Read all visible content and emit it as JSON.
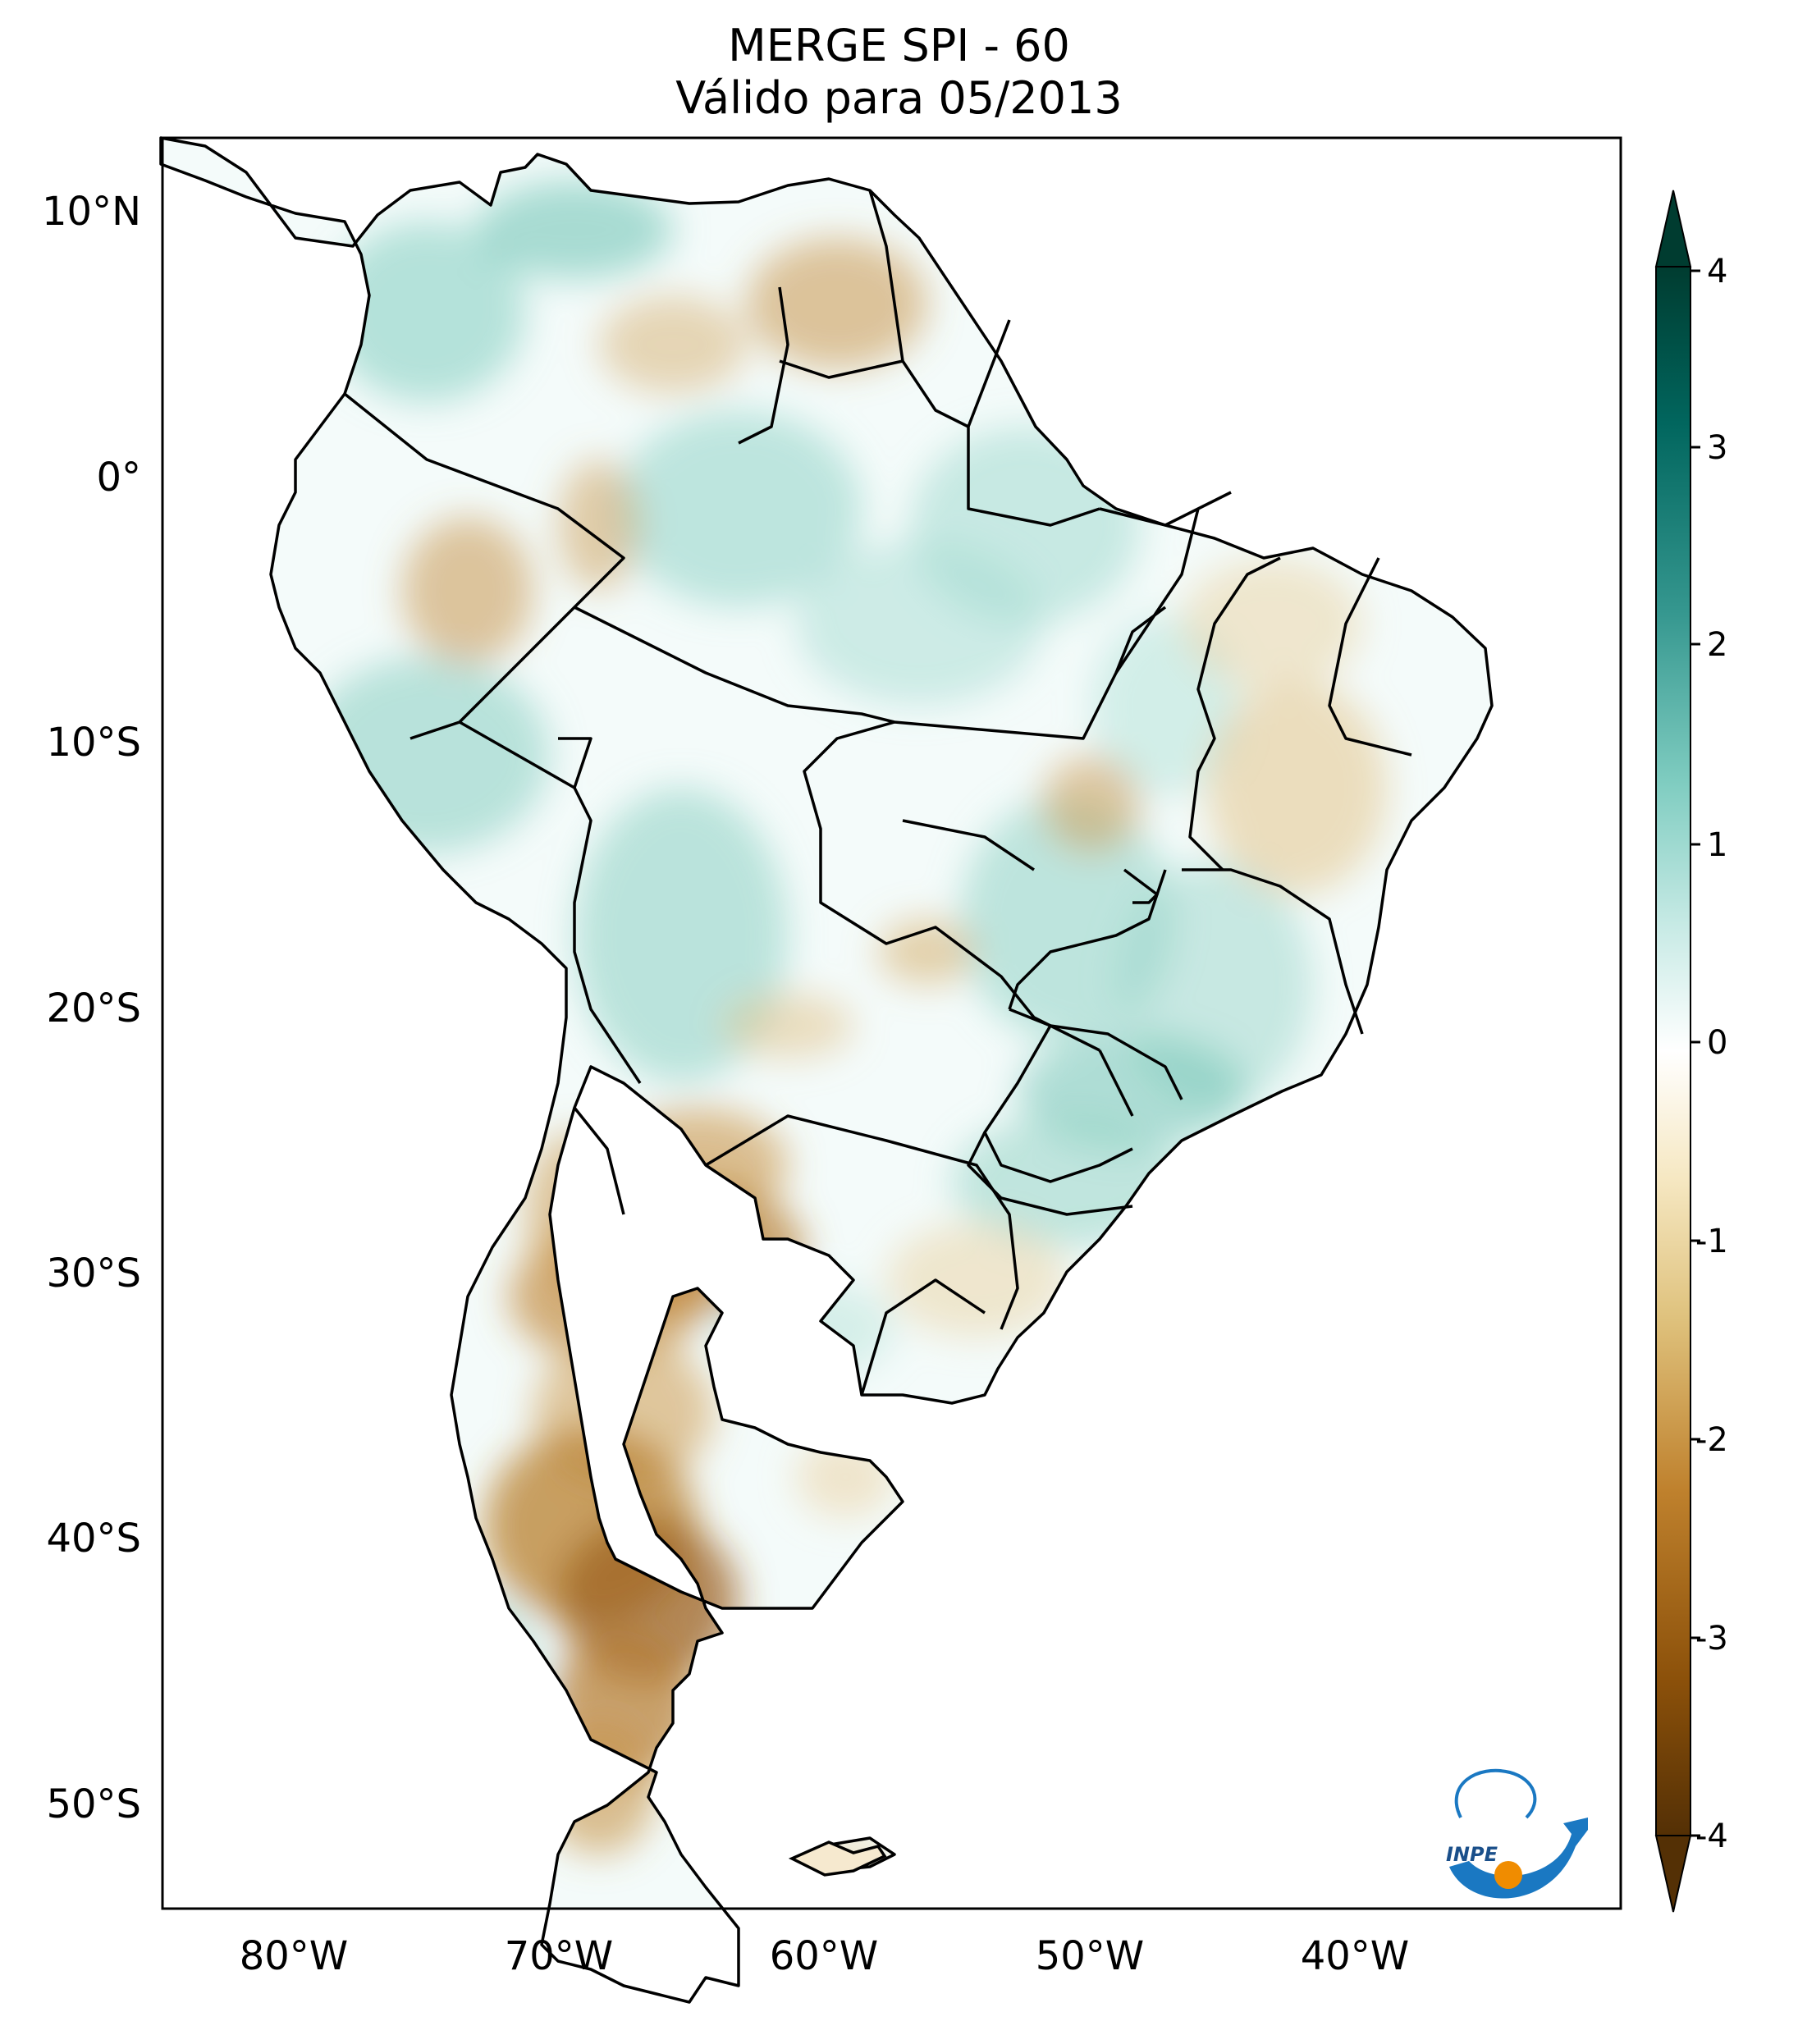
{
  "title": {
    "line1": "MERGE   SPI - 60",
    "line2": "Válido para 05/2013"
  },
  "map": {
    "lat_labels": [
      "10°N",
      "0°",
      "10°S",
      "20°S",
      "30°S",
      "40°S",
      "50°S"
    ],
    "lon_labels": [
      "80°W",
      "70°W",
      "60°W",
      "50°W",
      "40°W"
    ],
    "lat_values": [
      10,
      0,
      -10,
      -20,
      -30,
      -40,
      -50
    ],
    "lon_values": [
      -80,
      -70,
      -60,
      -50,
      -40
    ],
    "extent": {
      "lon_min": -85,
      "lon_max": -30,
      "lat_min": -56,
      "lat_max": 13
    }
  },
  "colorbar": {
    "ticks": [
      "4",
      "3",
      "2",
      "1",
      "0",
      "-1",
      "-2",
      "-3",
      "-4"
    ],
    "range": [
      -4,
      4
    ],
    "colormap": "BrBG",
    "colors": [
      "#543005",
      "#8c510a",
      "#bf812d",
      "#dfc27d",
      "#f6e8c3",
      "#ffffff",
      "#c7eae5",
      "#80cdc1",
      "#35978f",
      "#01665e",
      "#003c30"
    ]
  },
  "logo": {
    "text": "INPE",
    "colors": {
      "blue": "#1a78c2",
      "orange": "#f08c00"
    }
  }
}
